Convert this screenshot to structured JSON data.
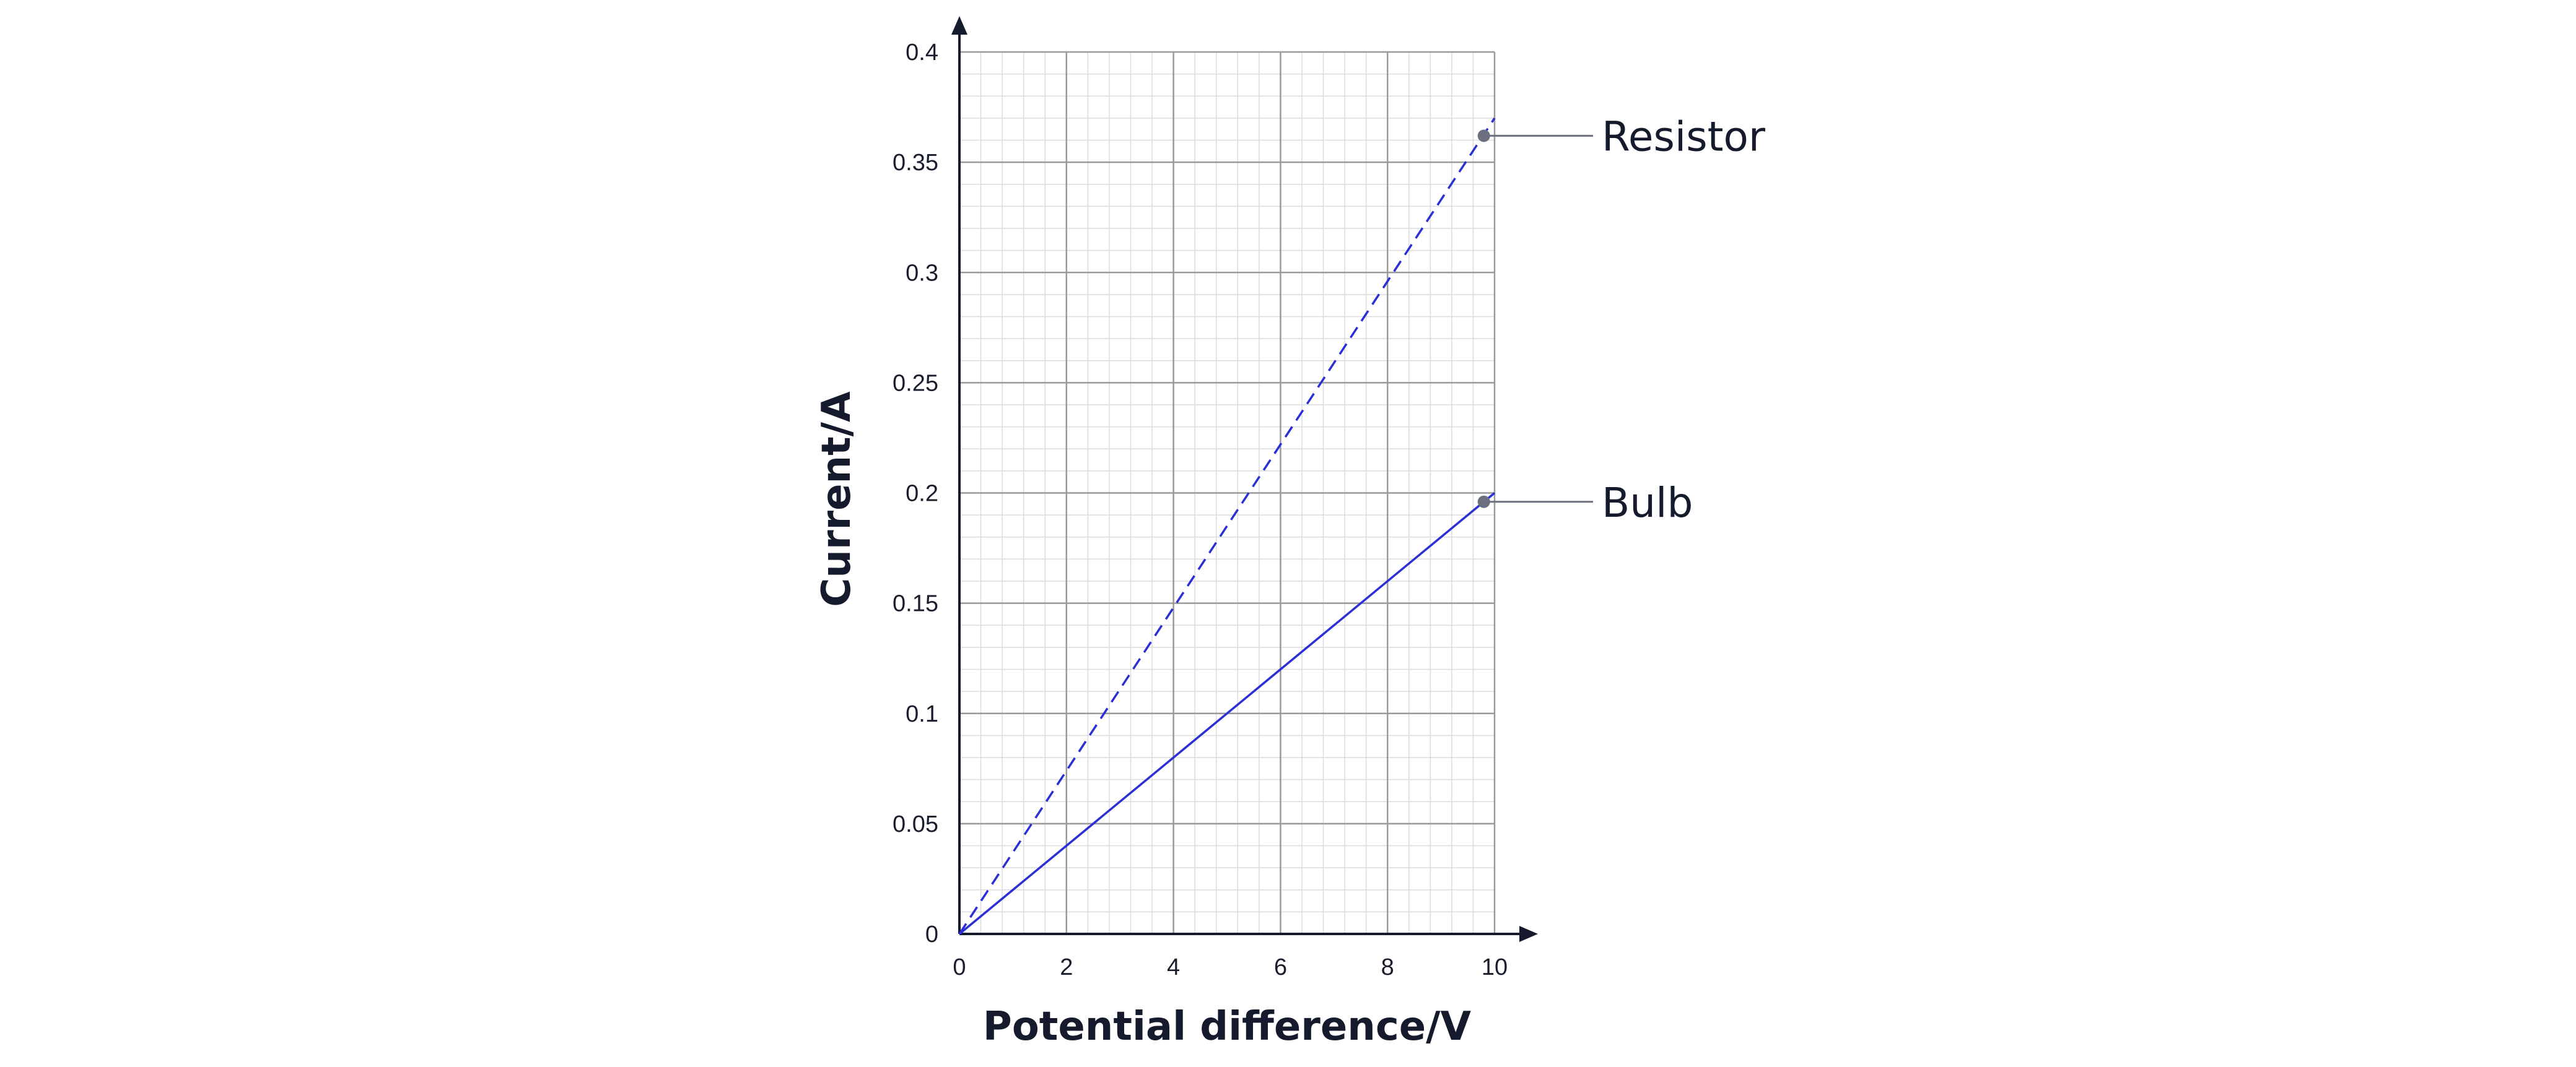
{
  "chart_data": {
    "type": "line",
    "xlabel": "Potential difference/V",
    "ylabel": "Current/A",
    "xlim": [
      0,
      10
    ],
    "ylim": [
      0,
      0.4
    ],
    "x_ticks": [
      "0",
      "2",
      "4",
      "6",
      "8",
      "10"
    ],
    "y_ticks": [
      "0",
      "0.05",
      "0.1",
      "0.15",
      "0.2",
      "0.25",
      "0.3",
      "0.35",
      "0.4"
    ],
    "x_major_step": 2,
    "y_major_step": 0.05,
    "x_minor_step": 0.4,
    "y_minor_step": 0.01,
    "grid": true,
    "series": [
      {
        "name": "Resistor",
        "style": "dashed",
        "color": "#2b2fd6",
        "x": [
          0,
          10
        ],
        "y": [
          0,
          0.37
        ],
        "label_point": [
          9.8,
          0.362
        ]
      },
      {
        "name": "Bulb",
        "style": "solid",
        "color": "#2b2fd6",
        "x": [
          0,
          10
        ],
        "y": [
          0,
          0.2
        ],
        "label_point": [
          9.8,
          0.196
        ]
      }
    ]
  }
}
